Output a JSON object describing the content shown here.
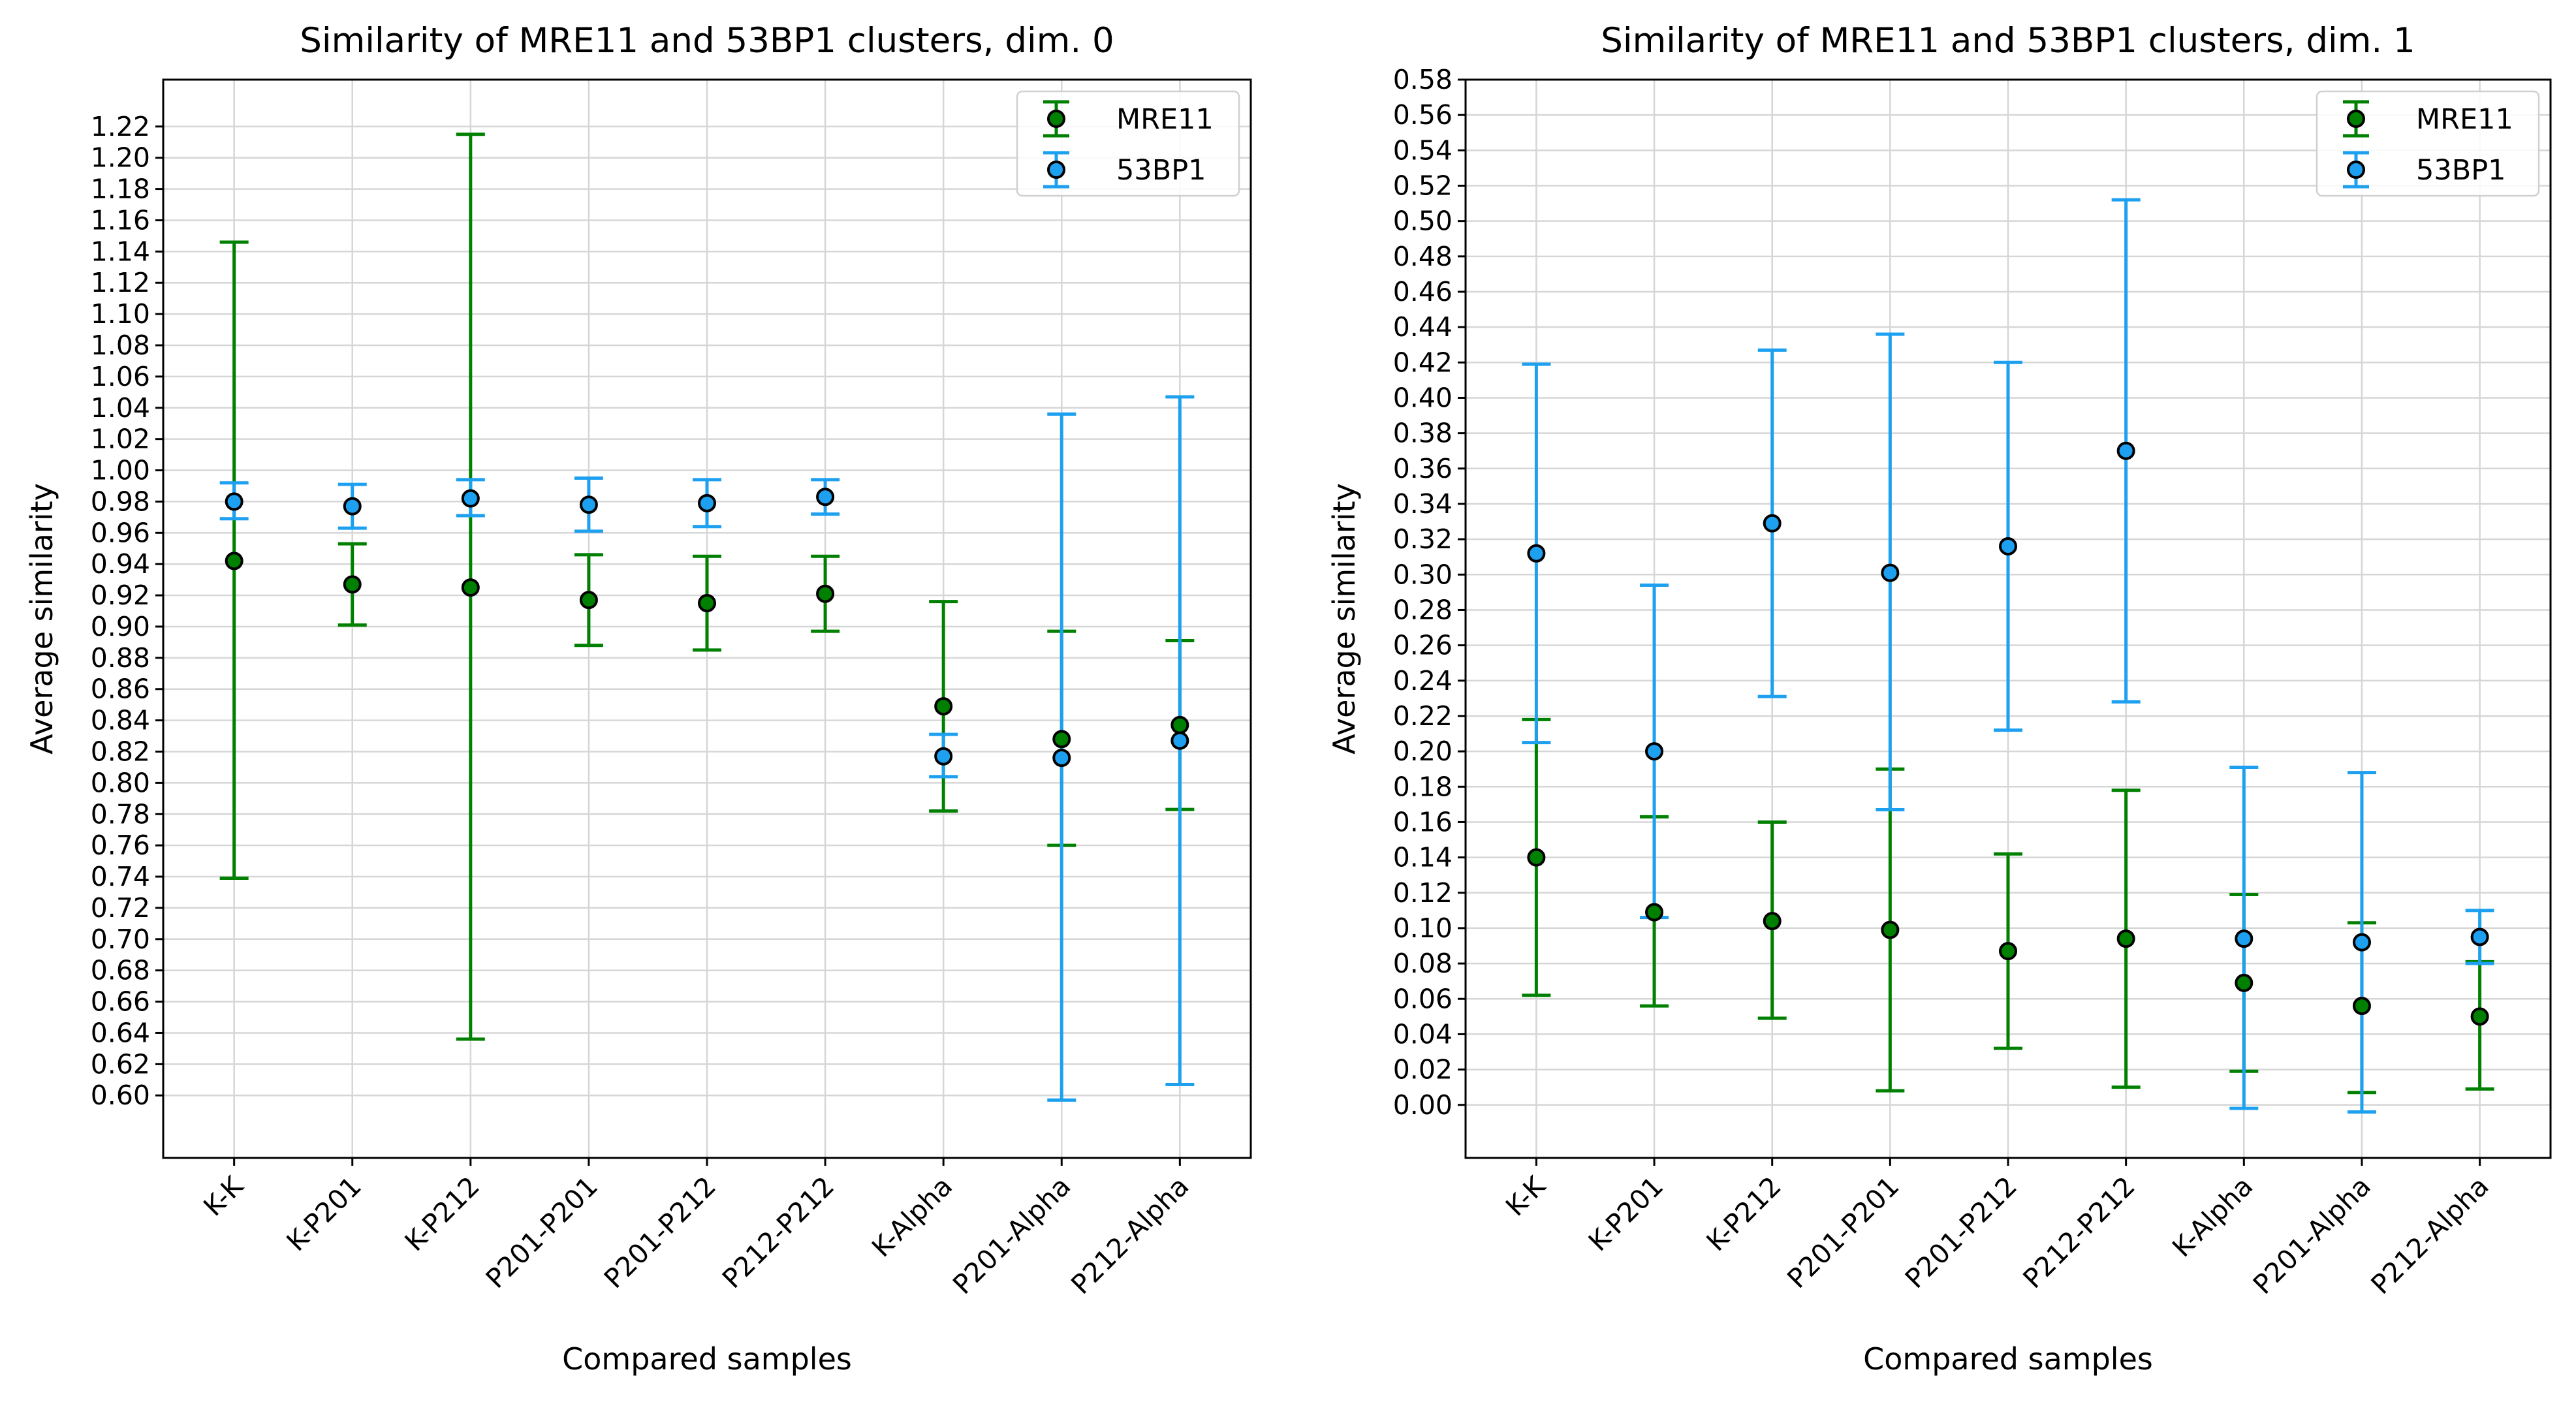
{
  "colors": {
    "mre11": "#008000",
    "bp53": "#1ea0f0",
    "grid": "#d6d6d6",
    "marker_edge": "#000000"
  },
  "chart_data": [
    {
      "type": "errorbar",
      "title": "Similarity of MRE11 and 53BP1 clusters, dim. 0",
      "xlabel": "Compared samples",
      "ylabel": "Average similarity",
      "ylim": [
        0.56,
        1.25
      ],
      "yticks": [
        "0.60",
        "0.62",
        "0.64",
        "0.66",
        "0.68",
        "0.70",
        "0.72",
        "0.74",
        "0.76",
        "0.78",
        "0.80",
        "0.82",
        "0.84",
        "0.86",
        "0.88",
        "0.90",
        "0.92",
        "0.94",
        "0.96",
        "0.98",
        "1.00",
        "1.02",
        "1.04",
        "1.06",
        "1.08",
        "1.10",
        "1.12",
        "1.14",
        "1.16",
        "1.18",
        "1.20",
        "1.22"
      ],
      "categories": [
        "K-K",
        "K-P201",
        "K-P212",
        "P201-P201",
        "P201-P212",
        "P212-P212",
        "K-Alpha",
        "P201-Alpha",
        "P212-Alpha"
      ],
      "legend": {
        "position": "top-right",
        "labels": [
          "MRE11",
          "53BP1"
        ]
      },
      "series": [
        {
          "name": "MRE11",
          "color": "#008000",
          "values": [
            0.942,
            0.927,
            0.925,
            0.917,
            0.915,
            0.921,
            0.849,
            0.828,
            0.837
          ],
          "lower": [
            0.739,
            0.901,
            0.636,
            0.888,
            0.885,
            0.897,
            0.782,
            0.76,
            0.783
          ],
          "upper": [
            1.146,
            0.953,
            1.215,
            0.946,
            0.945,
            0.945,
            0.916,
            0.897,
            0.891
          ]
        },
        {
          "name": "53BP1",
          "color": "#1ea0f0",
          "values": [
            0.98,
            0.977,
            0.982,
            0.978,
            0.979,
            0.983,
            0.817,
            0.816,
            0.827
          ],
          "lower": [
            0.969,
            0.963,
            0.971,
            0.961,
            0.964,
            0.972,
            0.804,
            0.597,
            0.607
          ],
          "upper": [
            0.992,
            0.991,
            0.994,
            0.995,
            0.994,
            0.994,
            0.831,
            1.036,
            1.047
          ]
        }
      ]
    },
    {
      "type": "errorbar",
      "title": "Similarity of MRE11 and 53BP1 clusters, dim. 1",
      "xlabel": "Compared samples",
      "ylabel": "Average similarity",
      "ylim": [
        -0.03,
        0.58
      ],
      "yticks": [
        "0.00",
        "0.02",
        "0.04",
        "0.06",
        "0.08",
        "0.10",
        "0.12",
        "0.14",
        "0.16",
        "0.18",
        "0.20",
        "0.22",
        "0.24",
        "0.26",
        "0.28",
        "0.30",
        "0.32",
        "0.34",
        "0.36",
        "0.38",
        "0.40",
        "0.42",
        "0.44",
        "0.46",
        "0.48",
        "0.50",
        "0.52",
        "0.54",
        "0.56",
        "0.58"
      ],
      "categories": [
        "K-K",
        "K-P201",
        "K-P212",
        "P201-P201",
        "P201-P212",
        "P212-P212",
        "K-Alpha",
        "P201-Alpha",
        "P212-Alpha"
      ],
      "legend": {
        "position": "top-right",
        "labels": [
          "MRE11",
          "53BP1"
        ]
      },
      "series": [
        {
          "name": "MRE11",
          "color": "#008000",
          "values": [
            0.14,
            0.109,
            0.104,
            0.099,
            0.087,
            0.094,
            0.069,
            0.056,
            0.05
          ],
          "lower": [
            0.062,
            0.056,
            0.049,
            0.008,
            0.032,
            0.01,
            0.019,
            0.007,
            0.009
          ],
          "upper": [
            0.218,
            0.163,
            0.16,
            0.19,
            0.142,
            0.178,
            0.119,
            0.103,
            0.081
          ]
        },
        {
          "name": "53BP1",
          "color": "#1ea0f0",
          "values": [
            0.312,
            0.2,
            0.329,
            0.301,
            0.316,
            0.37,
            0.094,
            0.092,
            0.095
          ],
          "lower": [
            0.205,
            0.106,
            0.231,
            0.167,
            0.212,
            0.228,
            -0.002,
            -0.004,
            0.08
          ],
          "upper": [
            0.419,
            0.294,
            0.427,
            0.436,
            0.42,
            0.512,
            0.191,
            0.188,
            0.11
          ]
        }
      ]
    }
  ]
}
